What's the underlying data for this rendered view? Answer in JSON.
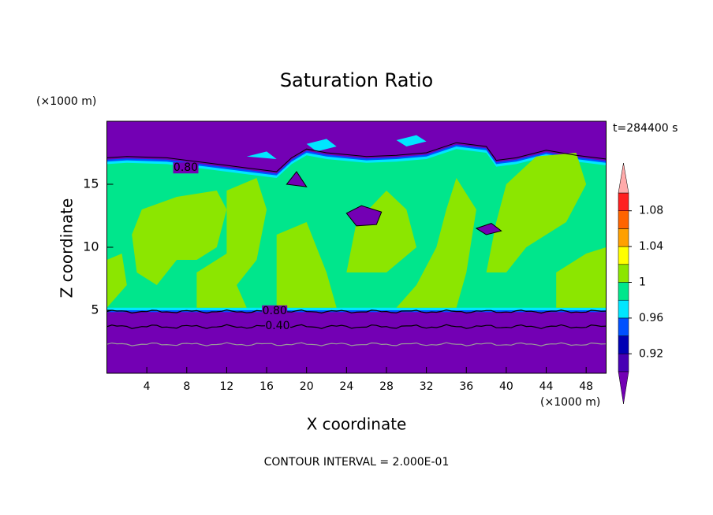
{
  "chart_data": {
    "type": "contour",
    "title": "Saturation Ratio",
    "x_label": "X coordinate",
    "y_label": "Z coordinate",
    "x_unit": "(×1000 m)",
    "y_unit": "(×1000 m)",
    "time_label": "t=284400 s",
    "footer": "CONTOUR INTERVAL = 2.000E-01",
    "xlim": [
      0,
      50
    ],
    "ylim": [
      0,
      20
    ],
    "xticks": [
      4,
      8,
      12,
      16,
      20,
      24,
      28,
      32,
      36,
      40,
      44,
      48
    ],
    "yticks": [
      5,
      10,
      15
    ],
    "contour_labels": [
      {
        "value": 0.8,
        "label": "0.80"
      },
      {
        "value": 0.4,
        "label": "0.40"
      },
      {
        "value": 0.8,
        "label": "0.80"
      }
    ],
    "colorbar": {
      "levels": [
        0.9,
        0.92,
        0.94,
        0.96,
        0.98,
        1,
        1.02,
        1.04,
        1.06,
        1.08,
        1.1
      ],
      "ticks": [
        0.92,
        0.96,
        1,
        1.04,
        1.08
      ],
      "colors": [
        "#7300b4",
        "#4600b4",
        "#0000b4",
        "#0050ff",
        "#00e6ff",
        "#00e68c",
        "#8ce600",
        "#ffff00",
        "#ffa000",
        "#ff6400",
        "#ff2020",
        "#ffaaaa"
      ]
    }
  }
}
